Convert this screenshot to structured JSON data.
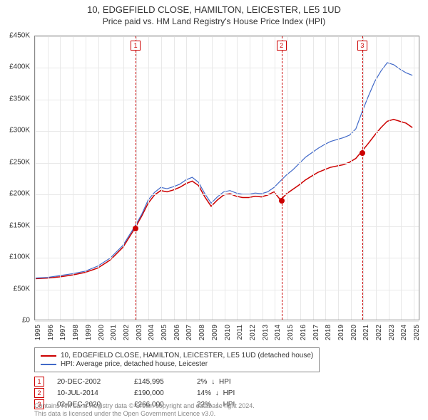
{
  "title_line1": "10, EDGEFIELD CLOSE, HAMILTON, LEICESTER, LE5 1UD",
  "title_line2": "Price paid vs. HM Land Registry's House Price Index (HPI)",
  "chart": {
    "type": "line",
    "background_color": "#ffffff",
    "grid_color": "#e8e8e8",
    "border_color": "#888888",
    "x": {
      "min": 1995,
      "max": 2025.5,
      "ticks": [
        1995,
        1996,
        1997,
        1998,
        1999,
        2000,
        2001,
        2002,
        2003,
        2004,
        2005,
        2006,
        2007,
        2008,
        2009,
        2010,
        2011,
        2012,
        2013,
        2014,
        2015,
        2016,
        2017,
        2018,
        2019,
        2020,
        2021,
        2022,
        2023,
        2024,
        2025
      ],
      "label_fontsize": 10,
      "rotation": -90
    },
    "y": {
      "min": 0,
      "max": 450000,
      "ticks": [
        0,
        50000,
        100000,
        150000,
        200000,
        250000,
        300000,
        350000,
        400000,
        450000
      ],
      "tick_labels": [
        "£0",
        "£50K",
        "£100K",
        "£150K",
        "£200K",
        "£250K",
        "£300K",
        "£350K",
        "£400K",
        "£450K"
      ],
      "label_fontsize": 10
    },
    "series": [
      {
        "name": "price_paid",
        "label": "10, EDGEFIELD CLOSE, HAMILTON, LEICESTER, LE5 1UD (detached house)",
        "color": "#cc0000",
        "line_width": 1.5,
        "points": [
          [
            1995,
            65000
          ],
          [
            1996,
            66000
          ],
          [
            1997,
            68000
          ],
          [
            1998,
            71000
          ],
          [
            1999,
            75000
          ],
          [
            2000,
            82000
          ],
          [
            2001,
            95000
          ],
          [
            2002,
            115000
          ],
          [
            2002.97,
            145995
          ],
          [
            2003.5,
            165000
          ],
          [
            2004,
            185000
          ],
          [
            2004.5,
            198000
          ],
          [
            2005,
            205000
          ],
          [
            2005.5,
            203000
          ],
          [
            2006,
            206000
          ],
          [
            2006.5,
            210000
          ],
          [
            2007,
            216000
          ],
          [
            2007.5,
            220000
          ],
          [
            2008,
            213000
          ],
          [
            2008.5,
            195000
          ],
          [
            2009,
            180000
          ],
          [
            2009.5,
            190000
          ],
          [
            2010,
            198000
          ],
          [
            2010.5,
            200000
          ],
          [
            2011,
            196000
          ],
          [
            2011.5,
            194000
          ],
          [
            2012,
            194000
          ],
          [
            2012.5,
            196000
          ],
          [
            2013,
            195000
          ],
          [
            2013.5,
            198000
          ],
          [
            2014,
            203000
          ],
          [
            2014.52,
            190000
          ],
          [
            2015,
            200000
          ],
          [
            2015.5,
            207000
          ],
          [
            2016,
            214000
          ],
          [
            2016.5,
            222000
          ],
          [
            2017,
            228000
          ],
          [
            2017.5,
            234000
          ],
          [
            2018,
            238000
          ],
          [
            2018.5,
            242000
          ],
          [
            2019,
            244000
          ],
          [
            2019.5,
            246000
          ],
          [
            2020,
            250000
          ],
          [
            2020.5,
            256000
          ],
          [
            2020.92,
            266000
          ],
          [
            2021.5,
            280000
          ],
          [
            2022,
            293000
          ],
          [
            2022.5,
            305000
          ],
          [
            2023,
            315000
          ],
          [
            2023.5,
            318000
          ],
          [
            2024,
            315000
          ],
          [
            2024.5,
            312000
          ],
          [
            2025,
            305000
          ]
        ]
      },
      {
        "name": "hpi",
        "label": "HPI: Average price, detached house, Leicester",
        "color": "#4169c8",
        "line_width": 1.2,
        "points": [
          [
            1995,
            66000
          ],
          [
            1996,
            67000
          ],
          [
            1997,
            70000
          ],
          [
            1998,
            73000
          ],
          [
            1999,
            77000
          ],
          [
            2000,
            85000
          ],
          [
            2001,
            98000
          ],
          [
            2002,
            118000
          ],
          [
            2003,
            150000
          ],
          [
            2003.5,
            168000
          ],
          [
            2004,
            190000
          ],
          [
            2004.5,
            202000
          ],
          [
            2005,
            210000
          ],
          [
            2005.5,
            208000
          ],
          [
            2006,
            211000
          ],
          [
            2006.5,
            215000
          ],
          [
            2007,
            222000
          ],
          [
            2007.5,
            226000
          ],
          [
            2008,
            218000
          ],
          [
            2008.5,
            200000
          ],
          [
            2009,
            185000
          ],
          [
            2009.5,
            195000
          ],
          [
            2010,
            203000
          ],
          [
            2010.5,
            205000
          ],
          [
            2011,
            201000
          ],
          [
            2011.5,
            199000
          ],
          [
            2012,
            199000
          ],
          [
            2012.5,
            201000
          ],
          [
            2013,
            200000
          ],
          [
            2013.5,
            203000
          ],
          [
            2014,
            210000
          ],
          [
            2014.5,
            220000
          ],
          [
            2015,
            230000
          ],
          [
            2015.5,
            238000
          ],
          [
            2016,
            248000
          ],
          [
            2016.5,
            258000
          ],
          [
            2017,
            265000
          ],
          [
            2017.5,
            272000
          ],
          [
            2018,
            278000
          ],
          [
            2018.5,
            283000
          ],
          [
            2019,
            286000
          ],
          [
            2019.5,
            289000
          ],
          [
            2020,
            293000
          ],
          [
            2020.5,
            303000
          ],
          [
            2021,
            330000
          ],
          [
            2021.5,
            355000
          ],
          [
            2022,
            378000
          ],
          [
            2022.5,
            395000
          ],
          [
            2023,
            408000
          ],
          [
            2023.5,
            405000
          ],
          [
            2024,
            398000
          ],
          [
            2024.5,
            392000
          ],
          [
            2025,
            388000
          ]
        ]
      }
    ],
    "markers": [
      {
        "n": "1",
        "x": 2002.97,
        "y": 145995
      },
      {
        "n": "2",
        "x": 2014.52,
        "y": 190000
      },
      {
        "n": "3",
        "x": 2020.92,
        "y": 266000
      }
    ],
    "marker_line_color": "#cc0000",
    "marker_box_border": "#cc0000",
    "marker_box_text": "#cc0000"
  },
  "legend": {
    "items": [
      {
        "color": "#cc0000",
        "label": "10, EDGEFIELD CLOSE, HAMILTON, LEICESTER, LE5 1UD (detached house)"
      },
      {
        "color": "#4169c8",
        "label": "HPI: Average price, detached house, Leicester"
      }
    ]
  },
  "sales": [
    {
      "n": "1",
      "date": "20-DEC-2002",
      "price": "£145,995",
      "diff_pct": "2%",
      "diff_label": "HPI"
    },
    {
      "n": "2",
      "date": "10-JUL-2014",
      "price": "£190,000",
      "diff_pct": "14%",
      "diff_label": "HPI"
    },
    {
      "n": "3",
      "date": "02-DEC-2020",
      "price": "£266,000",
      "diff_pct": "22%",
      "diff_label": "HPI"
    }
  ],
  "footnote_line1": "Contains HM Land Registry data © Crown copyright and database right 2024.",
  "footnote_line2": "This data is licensed under the Open Government Licence v3.0."
}
